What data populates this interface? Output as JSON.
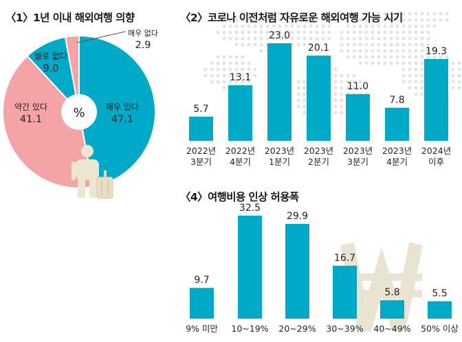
{
  "colors": {
    "teal": "#00a9c6",
    "pink": "#f4a4a6",
    "dark": "#232323",
    "beige": "#e9e3d2",
    "dots": "#e4e4e4",
    "person": "#ece5d0"
  },
  "icons": [
    "person-with-luggage-icon",
    "won-currency-icon",
    "dotted-world-map-icon"
  ],
  "chart_data": [
    {
      "type": "pie",
      "title": "〈1〉1년 이내 해외여행 의향",
      "center_label": "%",
      "slices": [
        {
          "label": "매우 있다",
          "value": 47.1,
          "color": "#00a9c6"
        },
        {
          "label": "약간 있다",
          "value": 41.1,
          "color": "#f4a4a6"
        },
        {
          "label": "별로 없다",
          "value": 9.0,
          "color": "#00a9c6"
        },
        {
          "label": "매우 없다",
          "value": 2.9,
          "color": "#f4a4a6"
        }
      ]
    },
    {
      "type": "bar",
      "title": "〈2〉코로나 이전처럼 자유로운 해외여행 가능 시기",
      "categories": [
        [
          "2022년",
          "3분기"
        ],
        [
          "2022년",
          "4분기"
        ],
        [
          "2023년",
          "1분기"
        ],
        [
          "2023년",
          "2분기"
        ],
        [
          "2023년",
          "3분기"
        ],
        [
          "2023년",
          "4분기"
        ],
        [
          "2024년",
          "이후"
        ]
      ],
      "values": [
        5.7,
        13.1,
        23.0,
        20.1,
        11.0,
        7.8,
        19.3
      ],
      "value_labels": [
        "5.7",
        "13.1",
        "23.0",
        "20.1",
        "11.0",
        "7.8",
        "19.3"
      ],
      "color": "#00a9c6"
    },
    {
      "type": "bar",
      "title": "〈4〉여행비용 인상 허용폭",
      "categories": [
        "9% 미만",
        "10~19%",
        "20~29%",
        "30~39%",
        "40~49%",
        "50% 이상"
      ],
      "values": [
        9.7,
        32.5,
        29.9,
        16.7,
        5.8,
        5.5
      ],
      "value_labels": [
        "9.7",
        "32.5",
        "29.9",
        "16.7",
        "5.8",
        "5.5"
      ],
      "color": "#00a9c6"
    }
  ]
}
